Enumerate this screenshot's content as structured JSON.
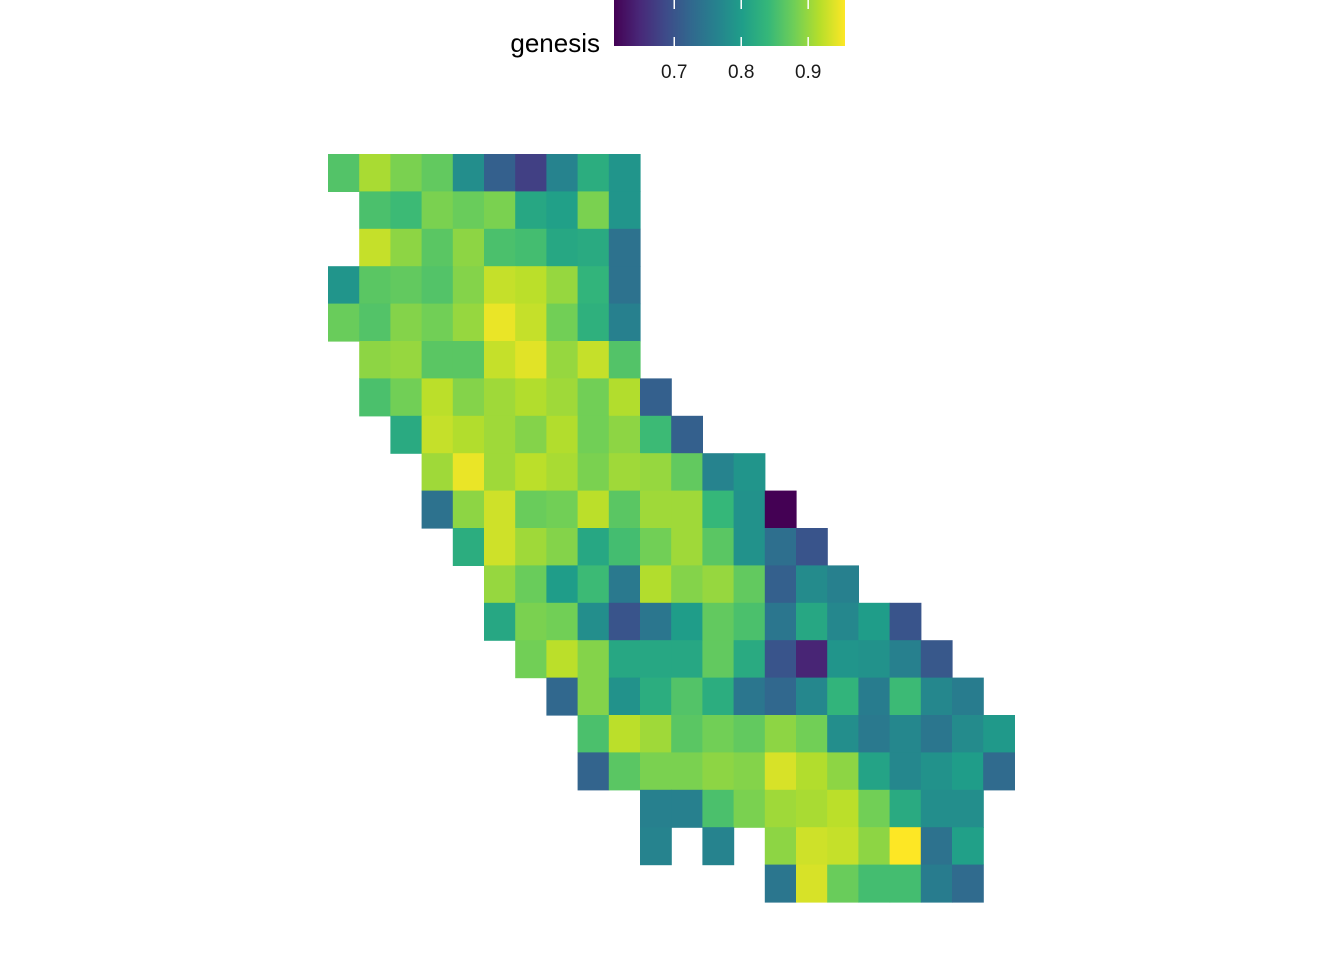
{
  "chart_data": {
    "type": "heatmap",
    "title": "",
    "xlabel": "",
    "ylabel": "",
    "grid": false,
    "legend": {
      "title": "genesis",
      "placement": "top",
      "range": [
        0.61,
        0.955
      ],
      "ticks": [
        0.7,
        0.8,
        0.9
      ],
      "tick_labels": [
        "0.7",
        "0.8",
        "0.9"
      ],
      "colormap": [
        "#440154",
        "#482878",
        "#3e4a89",
        "#31688e",
        "#26828e",
        "#1f9e89",
        "#35b779",
        "#6ece58",
        "#b5de2b",
        "#fde725"
      ]
    },
    "rows": [
      {
        "start": 0,
        "values": [
          0.86,
          0.91,
          0.885,
          0.87,
          0.78,
          0.715,
          0.675,
          0.765,
          0.825,
          0.79
        ]
      },
      {
        "start": 1,
        "values": [
          0.855,
          0.845,
          0.885,
          0.875,
          0.885,
          0.815,
          0.805,
          0.885,
          0.79
        ]
      },
      {
        "start": 1,
        "values": [
          0.925,
          0.895,
          0.865,
          0.895,
          0.855,
          0.85,
          0.815,
          0.82,
          0.74
        ]
      },
      {
        "start": 0,
        "values": [
          0.79,
          0.865,
          0.87,
          0.86,
          0.89,
          0.925,
          0.92,
          0.9,
          0.835,
          0.74
        ]
      },
      {
        "start": 0,
        "values": [
          0.875,
          0.86,
          0.89,
          0.88,
          0.9,
          0.945,
          0.925,
          0.88,
          0.83,
          0.76
        ]
      },
      {
        "start": 1,
        "values": [
          0.895,
          0.9,
          0.865,
          0.865,
          0.925,
          0.94,
          0.9,
          0.925,
          0.86
        ]
      },
      {
        "start": 1,
        "values": [
          0.855,
          0.88,
          0.92,
          0.89,
          0.905,
          0.915,
          0.905,
          0.88,
          0.915,
          0.715
        ]
      },
      {
        "start": 2,
        "values": [
          0.82,
          0.925,
          0.915,
          0.905,
          0.89,
          0.915,
          0.88,
          0.895,
          0.845,
          0.715
        ]
      },
      {
        "start": 3,
        "values": [
          0.905,
          0.945,
          0.905,
          0.92,
          0.91,
          0.885,
          0.905,
          0.9,
          0.87,
          0.765,
          0.79
        ]
      },
      {
        "start": 3,
        "values": [
          0.74,
          0.895,
          0.93,
          0.875,
          0.88,
          0.92,
          0.865,
          0.905,
          0.905,
          0.84,
          0.785,
          0.61
        ]
      },
      {
        "start": 4,
        "values": [
          0.825,
          0.93,
          0.905,
          0.89,
          0.815,
          0.85,
          0.88,
          0.905,
          0.865,
          0.785,
          0.735,
          0.7
        ]
      },
      {
        "start": 5,
        "values": [
          0.9,
          0.875,
          0.8,
          0.845,
          0.75,
          0.915,
          0.89,
          0.9,
          0.87,
          0.715,
          0.775,
          0.76
        ]
      },
      {
        "start": 5,
        "values": [
          0.815,
          0.885,
          0.88,
          0.78,
          0.7,
          0.745,
          0.8,
          0.87,
          0.855,
          0.745,
          0.815,
          0.77,
          0.8,
          0.7
        ]
      },
      {
        "start": 6,
        "values": [
          0.88,
          0.92,
          0.89,
          0.815,
          0.815,
          0.815,
          0.87,
          0.82,
          0.7,
          0.645,
          0.79,
          0.785,
          0.76,
          0.705
        ]
      },
      {
        "start": 7,
        "values": [
          0.725,
          0.89,
          0.785,
          0.825,
          0.86,
          0.825,
          0.745,
          0.725,
          0.77,
          0.835,
          0.755,
          0.845,
          0.77,
          0.755
        ]
      },
      {
        "start": 8,
        "values": [
          0.855,
          0.92,
          0.905,
          0.865,
          0.88,
          0.87,
          0.895,
          0.88,
          0.78,
          0.75,
          0.77,
          0.745,
          0.775,
          0.795
        ]
      },
      {
        "start": 8,
        "values": [
          0.72,
          0.865,
          0.885,
          0.885,
          0.895,
          0.89,
          0.935,
          0.915,
          0.895,
          0.81,
          0.77,
          0.785,
          0.8,
          0.73
        ]
      },
      {
        "start": 10,
        "values": [
          0.76,
          0.76,
          0.855,
          0.885,
          0.905,
          0.91,
          0.92,
          0.88,
          0.82,
          0.78,
          0.78
        ]
      },
      {
        "start": 10,
        "values": [
          0.765,
          null,
          0.765,
          null,
          0.895,
          0.93,
          0.925,
          0.895,
          0.955,
          0.74,
          0.805
        ]
      },
      {
        "start": 14,
        "values": [
          0.745,
          0.935,
          0.875,
          0.85,
          0.85,
          0.755,
          0.73
        ]
      }
    ]
  }
}
